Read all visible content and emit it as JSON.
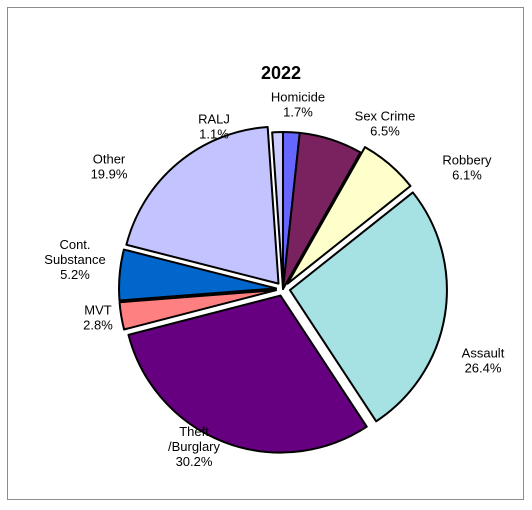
{
  "chart_data": {
    "type": "pie",
    "title": "2022",
    "slices": [
      {
        "label": [
          "Homicide"
        ],
        "value": 1.7,
        "value_label": "1.7%",
        "color": "#6666ff"
      },
      {
        "label": [
          "Sex Crime"
        ],
        "value": 6.5,
        "value_label": "6.5%",
        "color": "#7a2260"
      },
      {
        "label": [
          "Robbery"
        ],
        "value": 6.1,
        "value_label": "6.1%",
        "color": "#ffffcc"
      },
      {
        "label": [
          "Assault"
        ],
        "value": 26.4,
        "value_label": "26.4%",
        "color": "#a6e1e3"
      },
      {
        "label": [
          "Theft",
          "/Burglary"
        ],
        "value": 30.2,
        "value_label": "30.2%",
        "color": "#660081"
      },
      {
        "label": [
          "MVT"
        ],
        "value": 2.8,
        "value_label": "2.8%",
        "color": "#ff8080"
      },
      {
        "label": [
          "Cont.",
          "Substance"
        ],
        "value": 5.2,
        "value_label": "5.2%",
        "color": "#0066cc"
      },
      {
        "label": [
          "Other"
        ],
        "value": 19.9,
        "value_label": "19.9%",
        "color": "#c3c3ff"
      },
      {
        "label": [
          "RALJ"
        ],
        "value": 1.1,
        "value_label": "1.1%",
        "color": "#ccccff"
      }
    ],
    "exploded_slices": [
      "Robbery",
      "Assault",
      "Theft",
      "MVT",
      "Cont.",
      "Other"
    ],
    "start_angle_deg": 0,
    "direction": "clockwise",
    "legend": "none"
  }
}
